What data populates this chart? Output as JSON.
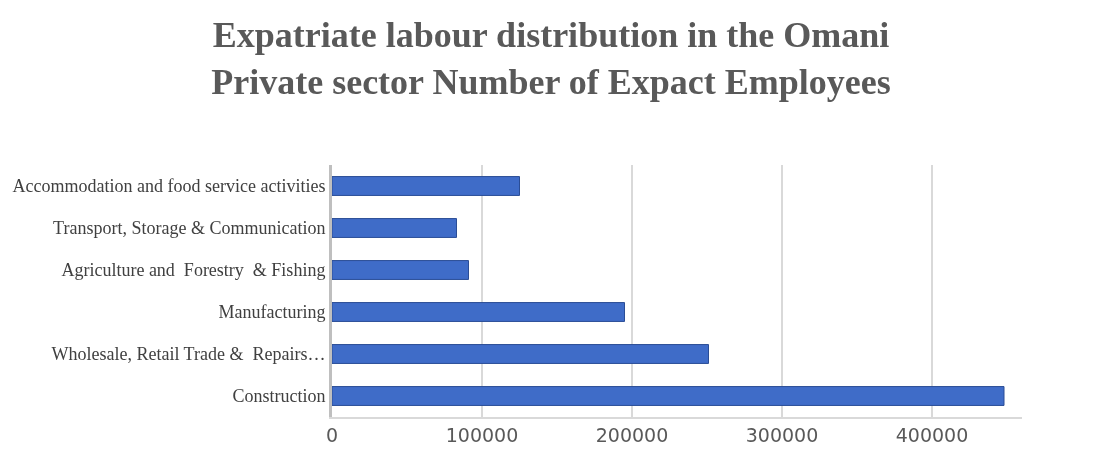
{
  "chart_data": {
    "type": "bar",
    "orientation": "horizontal",
    "title": "Expatriate labour distribution in the Omani Private sector Number of Expact Employees",
    "categories": [
      "Accommodation and food service activities",
      "Transport, Storage & Communication",
      "Agriculture and  Forestry  & Fishing",
      "Manufacturing",
      "Wholesale, Retail Trade &  Repairs…",
      "Construction"
    ],
    "values": [
      125000,
      83000,
      91000,
      195000,
      251000,
      448000
    ],
    "color": "#3f6cc8",
    "xlim": [
      0,
      460000
    ],
    "xticks": [
      0,
      100000,
      200000,
      300000,
      400000
    ],
    "grid": "x"
  }
}
